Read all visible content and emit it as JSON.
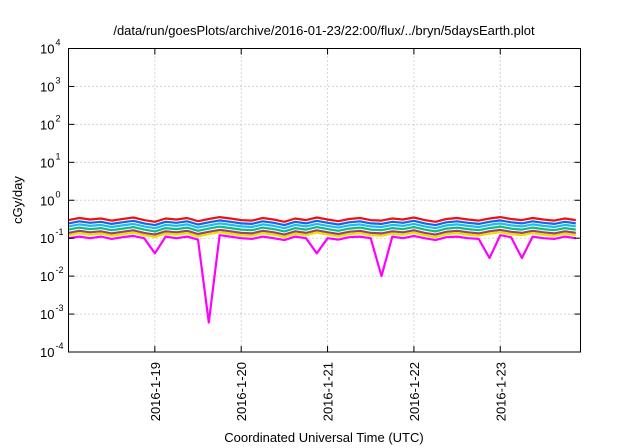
{
  "chart_data": {
    "type": "line",
    "title": "/data/run/goesPlots/archive/2016-01-23/22:00/flux/../bryn/5daysEarth.plot",
    "xlabel": "Coordinated Universal Time (UTC)",
    "ylabel": "cGy/day",
    "yscale": "log",
    "ylim": [
      0.0001,
      10000
    ],
    "y_tick_base": "10",
    "y_tick_exponents": [
      "-4",
      "-3",
      "-2",
      "-1",
      "0",
      "1",
      "2",
      "3",
      "4"
    ],
    "x_unit": "hours since 2016-01-18 00:00 UTC",
    "xlim": [
      0,
      142.3
    ],
    "x_ticks": [
      {
        "hours": 24,
        "label": "2016-1-19"
      },
      {
        "hours": 48,
        "label": "2016-1-20"
      },
      {
        "hours": 72,
        "label": "2016-1-21"
      },
      {
        "hours": 96,
        "label": "2016-1-22"
      },
      {
        "hours": 120,
        "label": "2016-1-23"
      }
    ],
    "grid": true,
    "x_step_hours": 3,
    "base_values": [
      0.3,
      0.34,
      0.31,
      0.33,
      0.29,
      0.32,
      0.35,
      0.3,
      0.27,
      0.33,
      0.31,
      0.34,
      0.28,
      0.32,
      0.36,
      0.33,
      0.3,
      0.29,
      0.34,
      0.31,
      0.27,
      0.33,
      0.3,
      0.35,
      0.31,
      0.28,
      0.32,
      0.34,
      0.3,
      0.29,
      0.33,
      0.31,
      0.35,
      0.3,
      0.27,
      0.32,
      0.34,
      0.31,
      0.29,
      0.33,
      0.36,
      0.32,
      0.3,
      0.34,
      0.31,
      0.29,
      0.33,
      0.3
    ],
    "series": [
      {
        "name": "red",
        "color": "#ee1111",
        "factor": 1.0
      },
      {
        "name": "blue",
        "color": "#1166ee",
        "factor": 0.82
      },
      {
        "name": "cyan",
        "color": "#22bbee",
        "factor": 0.68
      },
      {
        "name": "teal",
        "color": "#11bb88",
        "factor": 0.56
      },
      {
        "name": "purple",
        "color": "#994466",
        "factor": 0.46
      },
      {
        "name": "yellow",
        "color": "#eedd00",
        "factor": 0.4
      },
      {
        "name": "magenta",
        "color": "#ff00ff",
        "values": [
          0.1,
          0.11,
          0.1,
          0.11,
          0.096,
          0.106,
          0.115,
          0.1,
          0.04,
          0.11,
          0.1,
          0.11,
          0.092,
          0.0006,
          0.12,
          0.11,
          0.1,
          0.096,
          0.11,
          0.1,
          0.089,
          0.11,
          0.1,
          0.04,
          0.1,
          0.092,
          0.106,
          0.11,
          0.1,
          0.01,
          0.11,
          0.1,
          0.115,
          0.1,
          0.089,
          0.106,
          0.11,
          0.1,
          0.096,
          0.03,
          0.12,
          0.106,
          0.03,
          0.11,
          0.1,
          0.096,
          0.11,
          0.1
        ]
      }
    ]
  }
}
